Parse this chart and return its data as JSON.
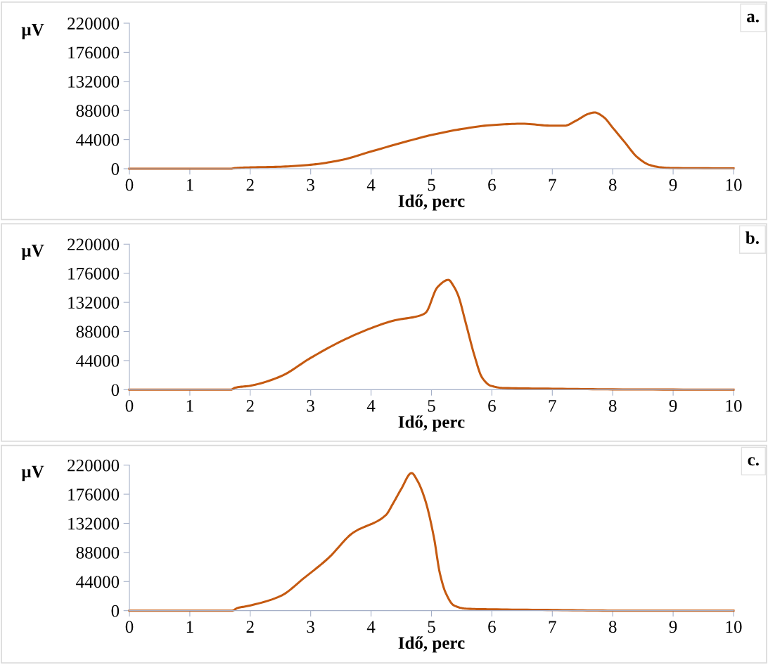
{
  "chart_data": [
    {
      "type": "line",
      "ylabel": "µV",
      "xlabel": "Idő, perc",
      "annotations": [
        "a."
      ],
      "xlim": [
        0,
        10
      ],
      "xticks": [
        0,
        1,
        2,
        3,
        4,
        5,
        6,
        7,
        8,
        9,
        10
      ],
      "ylim": [
        0,
        220000
      ],
      "yticks": [
        0,
        44000,
        88000,
        132000,
        176000,
        220000
      ],
      "grid": false,
      "legend": false,
      "series": [
        {
          "color": "#c55a11",
          "x": [
            0,
            1,
            1.3,
            1.65,
            1.68,
            1.75,
            2,
            2.5,
            3,
            3.5,
            4,
            4.5,
            5,
            5.5,
            6,
            6.5,
            7,
            7.2,
            7.4,
            7.6,
            7.7,
            7.85,
            8,
            8.2,
            8.4,
            8.6,
            8.8,
            9,
            10
          ],
          "values": [
            0,
            0,
            0,
            0,
            0,
            1000,
            2000,
            3000,
            6000,
            13000,
            26000,
            39000,
            51000,
            60000,
            66000,
            68000,
            65000,
            65000,
            73000,
            83000,
            85000,
            78000,
            62000,
            40000,
            18000,
            6000,
            2000,
            1000,
            500
          ]
        }
      ]
    },
    {
      "type": "line",
      "ylabel": "µV",
      "xlabel": "Idő, perc",
      "annotations": [
        "b."
      ],
      "xlim": [
        0,
        10
      ],
      "xticks": [
        0,
        1,
        2,
        3,
        4,
        5,
        6,
        7,
        8,
        9,
        10
      ],
      "ylim": [
        0,
        220000
      ],
      "yticks": [
        0,
        44000,
        88000,
        132000,
        176000,
        220000
      ],
      "grid": false,
      "legend": false,
      "series": [
        {
          "color": "#c55a11",
          "x": [
            0,
            1,
            1.3,
            1.6,
            1.68,
            1.75,
            2,
            2.5,
            3,
            3.5,
            4,
            4.4,
            4.77,
            4.9,
            5.1,
            5.28,
            5.37,
            5.44,
            5.57,
            5.71,
            5.84,
            5.98,
            6.2,
            7,
            8,
            10
          ],
          "values": [
            0,
            0,
            0,
            0,
            0,
            3000,
            6000,
            20000,
            48000,
            73000,
            93000,
            105000,
            111000,
            116000,
            155000,
            166000,
            156000,
            143000,
            100000,
            52000,
            18000,
            6000,
            2500,
            1500,
            500,
            0
          ]
        }
      ]
    },
    {
      "type": "line",
      "ylabel": "µV",
      "xlabel": "Idő, perc",
      "annotations": [
        "c."
      ],
      "xlim": [
        0,
        10
      ],
      "xticks": [
        0,
        1,
        2,
        3,
        4,
        5,
        6,
        7,
        8,
        9,
        10
      ],
      "ylim": [
        0,
        220000
      ],
      "yticks": [
        0,
        44000,
        88000,
        132000,
        176000,
        220000
      ],
      "grid": false,
      "legend": false,
      "series": [
        {
          "color": "#c55a11",
          "x": [
            0,
            1,
            1.3,
            1.6,
            1.7,
            1.79,
            1.96,
            2.5,
            2.9,
            3.3,
            3.69,
            4.24,
            4.37,
            4.5,
            4.67,
            4.77,
            4.9,
            5.04,
            5.14,
            5.24,
            5.37,
            5.57,
            6,
            7,
            8,
            10
          ],
          "values": [
            0,
            0,
            0,
            0,
            0,
            4000,
            7000,
            22000,
            50000,
            80000,
            117000,
            144000,
            163000,
            184000,
            208000,
            196000,
            166000,
            111000,
            56000,
            26000,
            8000,
            3000,
            2000,
            1000,
            0,
            0
          ]
        }
      ]
    }
  ]
}
